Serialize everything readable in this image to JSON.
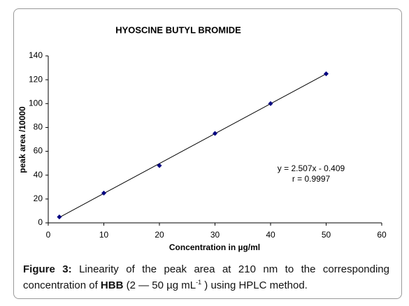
{
  "chart_data": {
    "type": "scatter",
    "title": "HYOSCINE BUTYL BROMIDE",
    "x_label": "Concentration in µg/ml",
    "y_label": "peak area /10000",
    "x": [
      2,
      10,
      20,
      30,
      40,
      50
    ],
    "values": [
      5,
      25,
      48,
      75,
      100,
      125
    ],
    "color": "#000080",
    "xlim": [
      0,
      60
    ],
    "xticks": [
      0,
      10,
      20,
      30,
      40,
      50,
      60
    ],
    "ylim": [
      0,
      140
    ],
    "yticks": [
      0,
      20,
      40,
      60,
      80,
      100,
      120,
      140
    ],
    "grid": false,
    "trendline": {
      "slope": 2.507,
      "intercept": -0.409,
      "label": "y = 2.507x - 0.409",
      "r_label": "r = 0.9997"
    }
  },
  "caption": {
    "figure": "Figure 3:",
    "text": " Linearity of the peak area at 210 nm to the corresponding concentration of ",
    "abbr": "HBB",
    "range": " (2 — 50 µg mL",
    "sup": "-1",
    "end": " ) using HPLC method."
  }
}
